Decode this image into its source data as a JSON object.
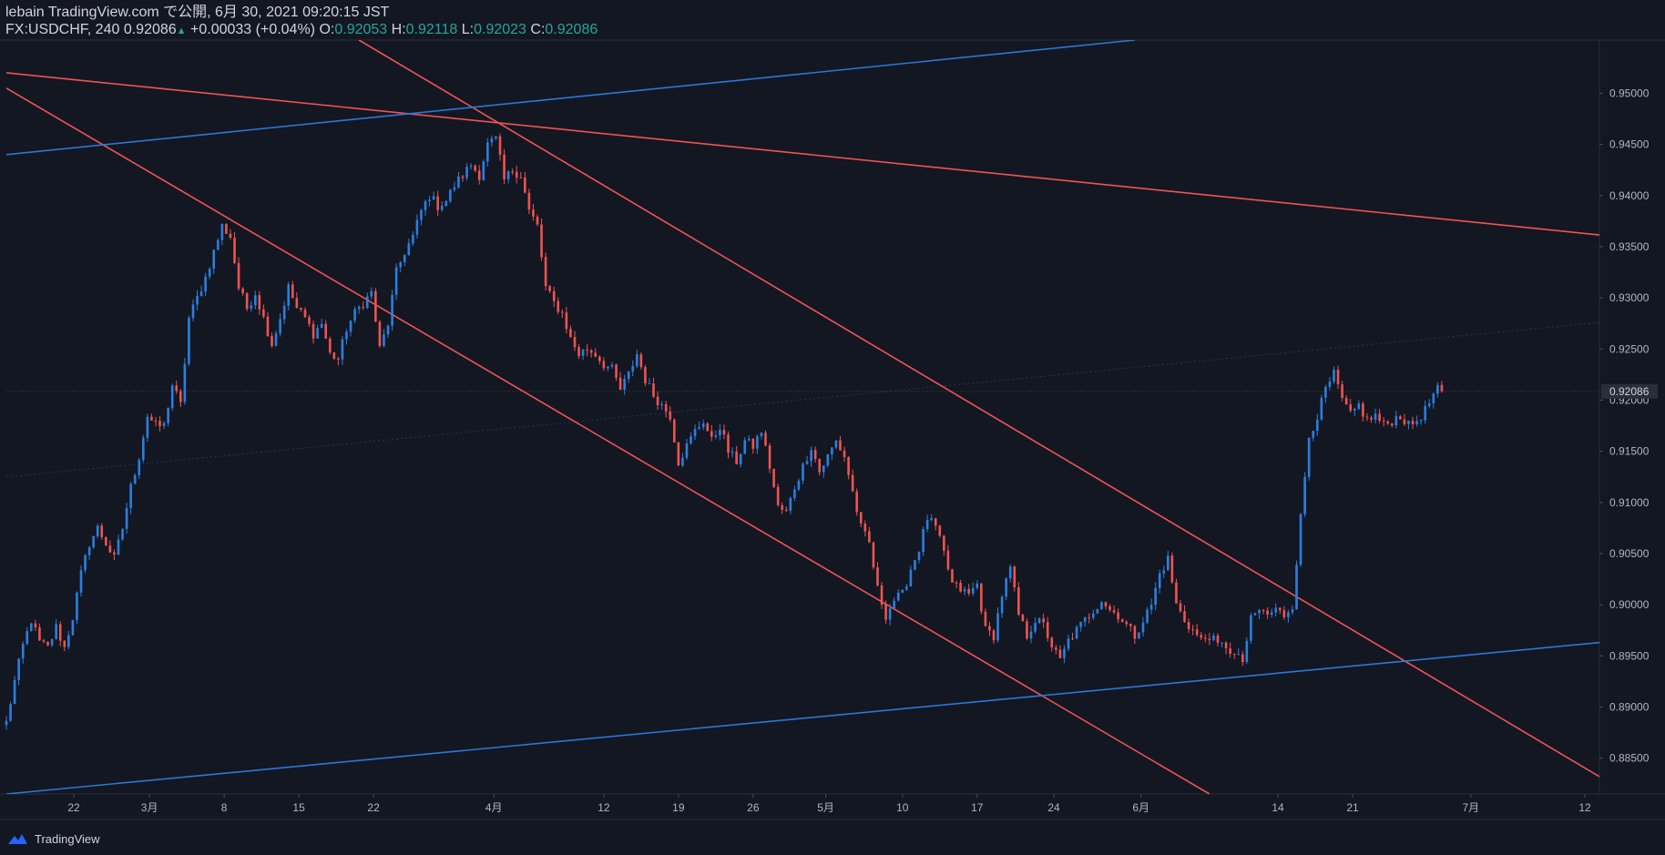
{
  "header": {
    "published": "lebain TradingView.com で公開, 6月 30, 2021 09:20:15 JST",
    "symbol": "FX:USDCHF, 240",
    "last": "0.92086",
    "change_arrow": "▲",
    "change": "+0.00033 (+0.04%)",
    "o_label": "O:",
    "o": "0.92053",
    "h_label": "H:",
    "h": "0.92118",
    "l_label": "L:",
    "l": "0.92023",
    "c_label": "C:",
    "c": "0.92086"
  },
  "footer": {
    "brand": "TradingView",
    "logo_icon": "tradingview-cloud-icon"
  },
  "colors": {
    "background": "#131722",
    "up": "#2a7fe0",
    "down": "#ef5350",
    "trend_red": "#f05451",
    "trend_blue": "#2c77d6",
    "axis_text": "#b2b5be",
    "price_tag_bg": "#2a2e39"
  },
  "chart_data": {
    "type": "candlestick",
    "title": "",
    "ylim": [
      0.8815,
      0.9552
    ],
    "y_ticks": [
      "0.88500",
      "0.89000",
      "0.89500",
      "0.90000",
      "0.90500",
      "0.91000",
      "0.91500",
      "0.92000",
      "0.92500",
      "0.93000",
      "0.93500",
      "0.94000",
      "0.94500",
      "0.95000"
    ],
    "x_ticks": [
      {
        "label": "22",
        "t": 16.25
      },
      {
        "label": "3月",
        "t": 34.5
      },
      {
        "label": "8",
        "t": 52.5
      },
      {
        "label": "15",
        "t": 70.5
      },
      {
        "label": "22",
        "t": 88.5
      },
      {
        "label": "4月",
        "t": 117.5
      },
      {
        "label": "12",
        "t": 144
      },
      {
        "label": "19",
        "t": 162
      },
      {
        "label": "26",
        "t": 180
      },
      {
        "label": "5月",
        "t": 197.5
      },
      {
        "label": "10",
        "t": 216
      },
      {
        "label": "17",
        "t": 234
      },
      {
        "label": "24",
        "t": 252.5
      },
      {
        "label": "6月",
        "t": 273.5
      },
      {
        "label": "14",
        "t": 306.5
      },
      {
        "label": "21",
        "t": 324.5
      },
      {
        "label": "7月",
        "t": 353
      },
      {
        "label": "12",
        "t": 380.5
      }
    ],
    "last_price": "0.92086",
    "t_max": 384,
    "anchors": [
      [
        0,
        0.8885
      ],
      [
        2,
        0.8925
      ],
      [
        4,
        0.896
      ],
      [
        6,
        0.8985
      ],
      [
        8,
        0.8963
      ],
      [
        10,
        0.8958
      ],
      [
        12,
        0.8978
      ],
      [
        14,
        0.8958
      ],
      [
        16,
        0.8988
      ],
      [
        18,
        0.903
      ],
      [
        20,
        0.906
      ],
      [
        22,
        0.9075
      ],
      [
        24,
        0.906
      ],
      [
        26,
        0.9045
      ],
      [
        28,
        0.9075
      ],
      [
        30,
        0.9115
      ],
      [
        32,
        0.9145
      ],
      [
        34,
        0.9185
      ],
      [
        36,
        0.9175
      ],
      [
        38,
        0.9175
      ],
      [
        40,
        0.9215
      ],
      [
        42,
        0.9195
      ],
      [
        44,
        0.928
      ],
      [
        46,
        0.93
      ],
      [
        48,
        0.932
      ],
      [
        50,
        0.9345
      ],
      [
        52,
        0.937
      ],
      [
        54,
        0.936
      ],
      [
        56,
        0.931
      ],
      [
        58,
        0.929
      ],
      [
        60,
        0.9305
      ],
      [
        62,
        0.928
      ],
      [
        64,
        0.9255
      ],
      [
        66,
        0.928
      ],
      [
        68,
        0.931
      ],
      [
        70,
        0.929
      ],
      [
        72,
        0.928
      ],
      [
        74,
        0.9265
      ],
      [
        76,
        0.9275
      ],
      [
        78,
        0.9245
      ],
      [
        80,
        0.924
      ],
      [
        82,
        0.927
      ],
      [
        84,
        0.9285
      ],
      [
        86,
        0.9295
      ],
      [
        88,
        0.9305
      ],
      [
        90,
        0.925
      ],
      [
        92,
        0.9275
      ],
      [
        94,
        0.9325
      ],
      [
        96,
        0.9345
      ],
      [
        98,
        0.936
      ],
      [
        100,
        0.9385
      ],
      [
        102,
        0.94
      ],
      [
        104,
        0.939
      ],
      [
        106,
        0.9395
      ],
      [
        108,
        0.941
      ],
      [
        110,
        0.942
      ],
      [
        112,
        0.943
      ],
      [
        114,
        0.942
      ],
      [
        116,
        0.945
      ],
      [
        118,
        0.9455
      ],
      [
        120,
        0.9415
      ],
      [
        122,
        0.9425
      ],
      [
        124,
        0.942
      ],
      [
        126,
        0.9385
      ],
      [
        128,
        0.937
      ],
      [
        130,
        0.931
      ],
      [
        132,
        0.9295
      ],
      [
        134,
        0.9285
      ],
      [
        136,
        0.926
      ],
      [
        138,
        0.9245
      ],
      [
        140,
        0.925
      ],
      [
        142,
        0.9245
      ],
      [
        144,
        0.9235
      ],
      [
        146,
        0.923
      ],
      [
        148,
        0.921
      ],
      [
        150,
        0.9225
      ],
      [
        152,
        0.9245
      ],
      [
        154,
        0.922
      ],
      [
        156,
        0.9205
      ],
      [
        158,
        0.9195
      ],
      [
        160,
        0.9185
      ],
      [
        162,
        0.914
      ],
      [
        164,
        0.9155
      ],
      [
        166,
        0.917
      ],
      [
        168,
        0.918
      ],
      [
        170,
        0.916
      ],
      [
        172,
        0.9175
      ],
      [
        174,
        0.915
      ],
      [
        176,
        0.914
      ],
      [
        178,
        0.916
      ],
      [
        180,
        0.9155
      ],
      [
        182,
        0.917
      ],
      [
        184,
        0.9135
      ],
      [
        186,
        0.9095
      ],
      [
        188,
        0.909
      ],
      [
        190,
        0.9115
      ],
      [
        192,
        0.9135
      ],
      [
        194,
        0.9155
      ],
      [
        196,
        0.913
      ],
      [
        198,
        0.9145
      ],
      [
        200,
        0.916
      ],
      [
        202,
        0.9145
      ],
      [
        204,
        0.911
      ],
      [
        206,
        0.9075
      ],
      [
        208,
        0.906
      ],
      [
        210,
        0.9015
      ],
      [
        212,
        0.899
      ],
      [
        214,
        0.9005
      ],
      [
        216,
        0.901
      ],
      [
        218,
        0.9035
      ],
      [
        220,
        0.9055
      ],
      [
        222,
        0.9085
      ],
      [
        224,
        0.9075
      ],
      [
        226,
        0.905
      ],
      [
        228,
        0.902
      ],
      [
        230,
        0.9015
      ],
      [
        232,
        0.901
      ],
      [
        234,
        0.902
      ],
      [
        236,
        0.8975
      ],
      [
        238,
        0.897
      ],
      [
        240,
        0.901
      ],
      [
        242,
        0.9035
      ],
      [
        244,
        0.899
      ],
      [
        246,
        0.897
      ],
      [
        248,
        0.8985
      ],
      [
        250,
        0.898
      ],
      [
        252,
        0.896
      ],
      [
        254,
        0.8945
      ],
      [
        256,
        0.8965
      ],
      [
        258,
        0.8975
      ],
      [
        260,
        0.8985
      ],
      [
        262,
        0.8995
      ],
      [
        264,
        0.9005
      ],
      [
        266,
        0.8995
      ],
      [
        268,
        0.899
      ],
      [
        270,
        0.898
      ],
      [
        272,
        0.897
      ],
      [
        274,
        0.8985
      ],
      [
        276,
        0.9
      ],
      [
        278,
        0.903
      ],
      [
        280,
        0.9045
      ],
      [
        282,
        0.9
      ],
      [
        284,
        0.8985
      ],
      [
        286,
        0.8975
      ],
      [
        288,
        0.8965
      ],
      [
        290,
        0.897
      ],
      [
        292,
        0.896
      ],
      [
        294,
        0.896
      ],
      [
        296,
        0.895
      ],
      [
        298,
        0.8945
      ],
      [
        300,
        0.8985
      ],
      [
        302,
        0.8995
      ],
      [
        304,
        0.899
      ],
      [
        306,
        0.8995
      ],
      [
        308,
        0.899
      ],
      [
        310,
        0.9
      ],
      [
        312,
        0.9085
      ],
      [
        314,
        0.9165
      ],
      [
        316,
        0.9185
      ],
      [
        318,
        0.921
      ],
      [
        320,
        0.9225
      ],
      [
        322,
        0.92
      ],
      [
        324,
        0.9185
      ],
      [
        326,
        0.9195
      ],
      [
        328,
        0.918
      ],
      [
        330,
        0.9185
      ],
      [
        332,
        0.9175
      ],
      [
        334,
        0.918
      ],
      [
        336,
        0.9185
      ],
      [
        338,
        0.9175
      ],
      [
        340,
        0.918
      ],
      [
        342,
        0.919
      ],
      [
        344,
        0.9205
      ],
      [
        345,
        0.921
      ],
      [
        346,
        0.92086
      ]
    ],
    "trendlines": [
      {
        "color": "red",
        "p1": [
          0,
          0.952
        ],
        "p2": [
          384,
          0.93615
        ]
      },
      {
        "color": "red",
        "p1": [
          0,
          0.9505
        ],
        "p2": [
          290,
          0.8815
        ]
      },
      {
        "color": "red",
        "p1": [
          85,
          0.9552
        ],
        "p2": [
          384,
          0.8832
        ]
      },
      {
        "color": "blue",
        "p1": [
          0,
          0.944
        ],
        "p2": [
          272,
          0.9552
        ]
      },
      {
        "color": "blue",
        "p1": [
          0,
          0.8815
        ],
        "p2": [
          384,
          0.8963
        ]
      },
      {
        "color": "blue-faint",
        "p1": [
          0,
          0.9125
        ],
        "p2": [
          384,
          0.9276
        ]
      }
    ]
  }
}
